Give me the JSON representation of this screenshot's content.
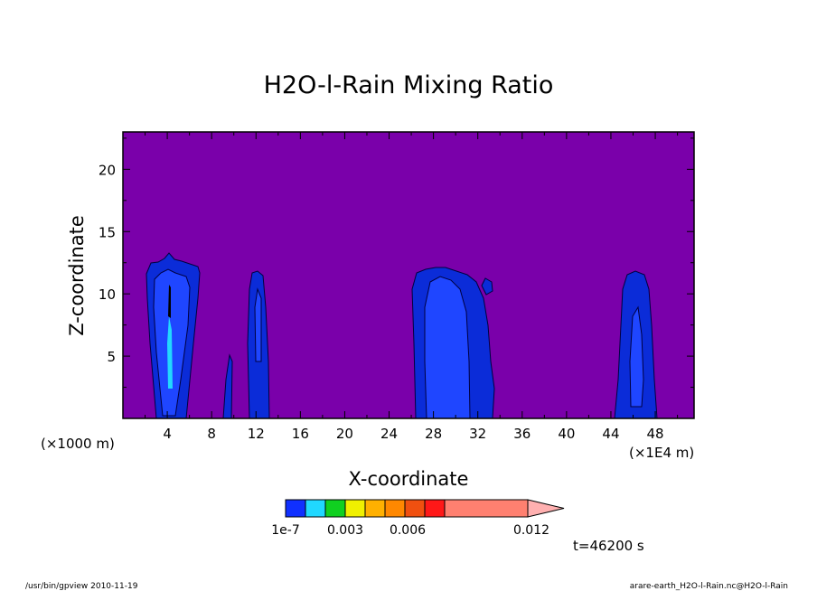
{
  "chart_data": {
    "type": "heatmap",
    "title": "H2O-l-Rain Mixing Ratio",
    "xlabel": "X-coordinate",
    "ylabel": "Z-coordinate",
    "x_unit_left": "(×1000 m)",
    "x_unit_right": "(×1E4 m)",
    "xlim": [
      0,
      51.5
    ],
    "ylim": [
      0,
      23
    ],
    "x_ticks": [
      4,
      8,
      12,
      16,
      20,
      24,
      28,
      32,
      36,
      40,
      44,
      48
    ],
    "y_ticks": [
      5,
      10,
      15,
      20
    ],
    "background_level_color": "#7a00aa",
    "colorbar": {
      "colors": [
        "#1030ff",
        "#20d8ff",
        "#10d020",
        "#f0f000",
        "#ffb000",
        "#ff8800",
        "#f05010",
        "#ff1818",
        "#ff8070",
        "#ffb0b0"
      ],
      "labels": [
        "1e-7",
        "0.003",
        "0.006",
        "0.012"
      ]
    },
    "time_label": "t=46200 s",
    "footer_left": "/usr/bin/gpview  2010-11-19",
    "footer_right": "arare-earth_H2O-l-Rain.nc@H2O-l-Rain"
  }
}
